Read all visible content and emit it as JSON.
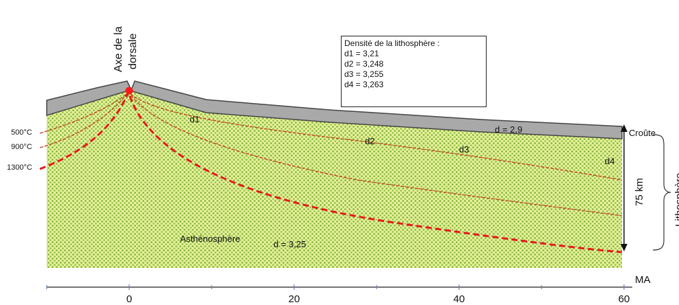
{
  "title": "",
  "axis_label": "Axe de la dorsale",
  "axis_label_lines": [
    "Axe de la",
    "dorsale"
  ],
  "legend": {
    "title": "Densité de la lithosphère :",
    "entries": [
      "d1  = 3,21",
      "d2  = 3,248",
      "d3  = 3,255",
      "d4  = 3,263"
    ]
  },
  "temperatures": [
    "500°C",
    "900°C",
    "1300°C"
  ],
  "zones": {
    "d1": "d1",
    "d2": "d2",
    "d3": "d3",
    "d4": "d4",
    "crust_density": "d = 2,9",
    "asthenosphere": "Asthénosphère",
    "asthenosphere_density": "d = 3,25"
  },
  "side_labels": {
    "crust": "Croûte",
    "thickness": "75 km",
    "lithosphere": "Lithosphère"
  },
  "x_axis": {
    "unit": "MA",
    "ticks": [
      "0",
      "20",
      "40",
      "60"
    ]
  },
  "colors": {
    "crust": "#a9a9a9",
    "mantle_light": "#d9ea7a",
    "mantle_dots": "#7fb43a",
    "isotherm_thin": "#c0391b",
    "isotherm_1300": "#e41a1a",
    "ridge": "#ff1a1a"
  }
}
